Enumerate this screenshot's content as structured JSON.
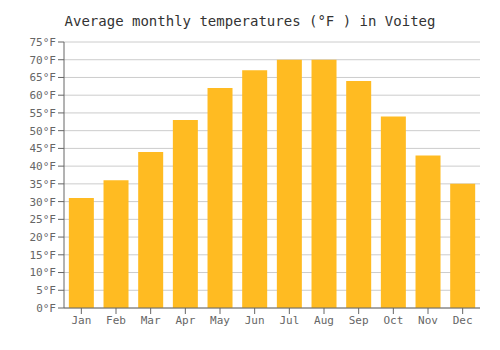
{
  "chart_data": {
    "type": "bar",
    "title": "Average monthly temperatures (°F ) in Voiteg",
    "categories": [
      "Jan",
      "Feb",
      "Mar",
      "Apr",
      "May",
      "Jun",
      "Jul",
      "Aug",
      "Sep",
      "Oct",
      "Nov",
      "Dec"
    ],
    "values": [
      31,
      36,
      44,
      53,
      62,
      67,
      70,
      70,
      64,
      54,
      43,
      35
    ],
    "color": "#FFBB22",
    "ylim": [
      0,
      75
    ],
    "yticks": [
      {
        "value": 0,
        "label": "0°F"
      },
      {
        "value": 5,
        "label": "5°F"
      },
      {
        "value": 10,
        "label": "10°F"
      },
      {
        "value": 15,
        "label": "15°F"
      },
      {
        "value": 20,
        "label": "20°F"
      },
      {
        "value": 25,
        "label": "25°F"
      },
      {
        "value": 30,
        "label": "30°F"
      },
      {
        "value": 35,
        "label": "35°F"
      },
      {
        "value": 40,
        "label": "40°F"
      },
      {
        "value": 45,
        "label": "45°F"
      },
      {
        "value": 50,
        "label": "50°F"
      },
      {
        "value": 55,
        "label": "55°F"
      },
      {
        "value": 60,
        "label": "60°F"
      },
      {
        "value": 65,
        "label": "65°F"
      },
      {
        "value": 70,
        "label": "70°F"
      },
      {
        "value": 75,
        "label": "75°F"
      }
    ],
    "grid": true
  }
}
